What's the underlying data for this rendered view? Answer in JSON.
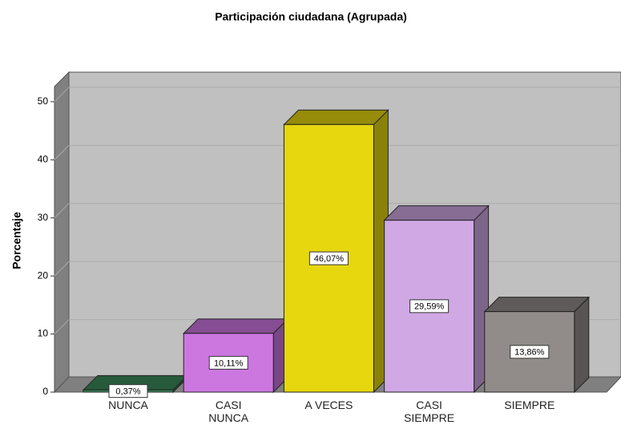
{
  "chart_data": {
    "type": "bar3d",
    "title": "Participación ciudadana (Agrupada)",
    "y_label": "Porcentaje",
    "categories": [
      "NUNCA",
      "CASI NUNCA",
      "A VECES",
      "CASI SIEMPRE",
      "SIEMPRE"
    ],
    "values": [
      0.37,
      10.11,
      46.07,
      29.59,
      13.86
    ],
    "value_labels": [
      "0,37%",
      "10,11%",
      "46,07%",
      "29,59%",
      "13,86%"
    ],
    "colors": [
      "#3a8a5a",
      "#cc77e0",
      "#e6d70f",
      "#d0a8e4",
      "#918c8a"
    ],
    "ylim": [
      0,
      52.6
    ],
    "yticks": [
      0,
      10,
      20,
      30,
      40,
      50
    ],
    "grid": true
  }
}
